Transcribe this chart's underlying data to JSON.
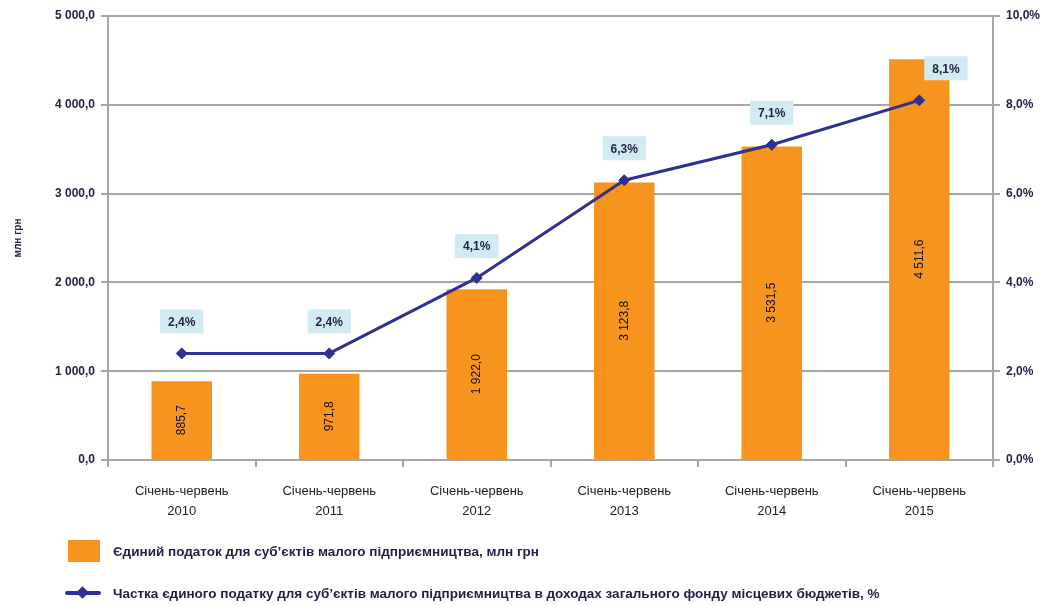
{
  "chart_data": {
    "type": "bar",
    "categories": [
      "Січень-червень 2010",
      "Січень-червень 2011",
      "Січень-червень 2012",
      "Січень-червень 2013",
      "Січень-червень 2014",
      "Січень-червень 2015"
    ],
    "ylabel": "млн грн",
    "ylim": [
      0,
      5000
    ],
    "yticks": [
      {
        "value": 0,
        "label": "0,0"
      },
      {
        "value": 1000,
        "label": "1 000,0"
      },
      {
        "value": 2000,
        "label": "2 000,0"
      },
      {
        "value": 3000,
        "label": "3 000,0"
      },
      {
        "value": 4000,
        "label": "4 000,0"
      },
      {
        "value": 5000,
        "label": "5 000,0"
      }
    ],
    "y2lim": [
      0,
      10
    ],
    "y2ticks": [
      {
        "value": 0,
        "label": "0,0%"
      },
      {
        "value": 2,
        "label": "2,0%"
      },
      {
        "value": 4,
        "label": "4,0%"
      },
      {
        "value": 6,
        "label": "6,0%"
      },
      {
        "value": 8,
        "label": "8,0%"
      },
      {
        "value": 10,
        "label": "10,0%"
      }
    ],
    "grid": "y",
    "legend": "bottom",
    "series": [
      {
        "name": "Єдиний податок для суб’єктів малого підприємництва, млн грн",
        "color": "#f7941d",
        "values": [
          885.7,
          971.8,
          1922.0,
          3123.8,
          3531.5,
          4511.6
        ],
        "value_labels": [
          "885,7",
          "971,8",
          "1 922,0",
          "3 123,8",
          "3 531,5",
          "4 511,6"
        ]
      },
      {
        "name": "Частка єдиного податку для суб’єктів малого підприємництва в доходах загального фонду місцевих бюджетів, %",
        "type": "line",
        "axis": "y2",
        "color": "#2e3192",
        "marker": "diamond",
        "values": [
          2.4,
          2.4,
          4.1,
          6.3,
          7.1,
          8.1
        ],
        "value_labels": [
          "2,4%",
          "2,4%",
          "4,1%",
          "6,3%",
          "7,1%",
          "8,1%"
        ]
      }
    ]
  }
}
